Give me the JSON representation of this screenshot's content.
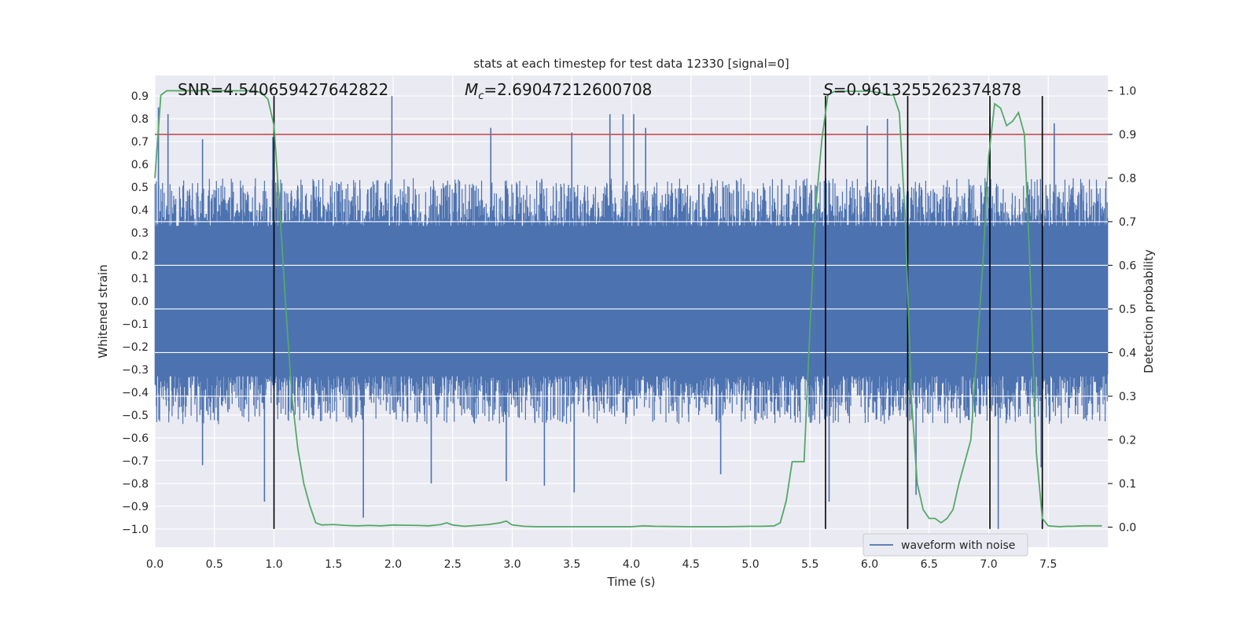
{
  "chart_data": {
    "type": "line",
    "title": "stats at each timestep for test data 12330 [signal=0]",
    "xlabel": "Time (s)",
    "ylabel": "Whitened strain",
    "y2label": "Detection probability",
    "xlim": [
      0.0,
      8.0
    ],
    "ylim": [
      -1.08,
      0.99
    ],
    "y2lim": [
      -0.046,
      1.035
    ],
    "xticks": [
      "0.0",
      "0.5",
      "1.0",
      "1.5",
      "2.0",
      "2.5",
      "3.0",
      "3.5",
      "4.0",
      "4.5",
      "5.0",
      "5.5",
      "6.0",
      "6.5",
      "7.0",
      "7.5"
    ],
    "yticks": [
      "0.9",
      "0.8",
      "0.7",
      "0.6",
      "0.5",
      "0.4",
      "0.3",
      "0.2",
      "0.1",
      "0.0",
      "-0.1",
      "-0.2",
      "-0.3",
      "-0.4",
      "-0.5",
      "-0.6",
      "-0.7",
      "-0.8",
      "-0.9",
      "-1.0"
    ],
    "y2ticks": [
      "1.0",
      "0.9",
      "0.8",
      "0.7",
      "0.6",
      "0.5",
      "0.4",
      "0.3",
      "0.2",
      "0.1",
      "0.0"
    ],
    "annotations": {
      "snr": "SNR=4.540659427642822",
      "mc_symbol": "M",
      "mc_sub": "c",
      "mc_value": "=2.69047212600708",
      "s_symbol": "S",
      "s_value": "=0.9613255262374878"
    },
    "legend": {
      "label": "waveform with noise",
      "position": "lower-right"
    },
    "threshold_line": {
      "y2": 0.9,
      "color": "#c44e52"
    },
    "vertical_markers": {
      "times": [
        1.0,
        5.63,
        6.32,
        7.01,
        7.45
      ],
      "y_range": [
        -1.0,
        0.9
      ],
      "color": "#000000"
    },
    "series": [
      {
        "name": "waveform with noise",
        "color": "#4c72b0",
        "kind": "noise",
        "spikes": [
          {
            "x": 0.03,
            "y": 0.85
          },
          {
            "x": 0.11,
            "y": 0.82
          },
          {
            "x": 0.4,
            "y": 0.71
          },
          {
            "x": 0.99,
            "y": 0.72
          },
          {
            "x": 1.99,
            "y": 0.9
          },
          {
            "x": 2.82,
            "y": 0.76
          },
          {
            "x": 3.5,
            "y": 0.74
          },
          {
            "x": 3.82,
            "y": 0.82
          },
          {
            "x": 3.93,
            "y": 0.82
          },
          {
            "x": 4.02,
            "y": 0.82
          },
          {
            "x": 4.12,
            "y": 0.76
          },
          {
            "x": 5.98,
            "y": 0.77
          },
          {
            "x": 6.15,
            "y": 0.8
          },
          {
            "x": 7.01,
            "y": 0.81
          },
          {
            "x": 7.55,
            "y": 0.78
          },
          {
            "x": 0.92,
            "y": -0.88
          },
          {
            "x": 1.75,
            "y": -0.95
          },
          {
            "x": 2.32,
            "y": -0.8
          },
          {
            "x": 2.95,
            "y": -0.79
          },
          {
            "x": 3.27,
            "y": -0.81
          },
          {
            "x": 3.52,
            "y": -0.84
          },
          {
            "x": 5.66,
            "y": -0.88
          },
          {
            "x": 6.39,
            "y": -0.85
          },
          {
            "x": 7.08,
            "y": -1.0
          },
          {
            "x": 7.44,
            "y": -0.73
          },
          {
            "x": 0.4,
            "y": -0.72
          },
          {
            "x": 4.75,
            "y": -0.76
          }
        ]
      },
      {
        "name": "detection probability",
        "color": "#55a868",
        "axis": "right",
        "x": [
          0.0,
          0.05,
          0.1,
          0.15,
          0.2,
          0.3,
          0.4,
          0.5,
          0.6,
          0.7,
          0.8,
          0.85,
          0.9,
          0.95,
          1.0,
          1.05,
          1.1,
          1.15,
          1.2,
          1.25,
          1.3,
          1.35,
          1.4,
          1.5,
          1.6,
          1.7,
          1.8,
          1.9,
          2.0,
          2.2,
          2.3,
          2.4,
          2.45,
          2.5,
          2.6,
          2.7,
          2.8,
          2.9,
          2.95,
          3.0,
          3.1,
          3.2,
          3.5,
          4.0,
          4.1,
          4.2,
          4.5,
          4.8,
          5.0,
          5.1,
          5.2,
          5.25,
          5.3,
          5.35,
          5.4,
          5.45,
          5.5,
          5.55,
          5.6,
          5.65,
          5.7,
          5.75,
          5.8,
          5.9,
          6.0,
          6.1,
          6.15,
          6.2,
          6.25,
          6.3,
          6.35,
          6.4,
          6.45,
          6.5,
          6.55,
          6.6,
          6.65,
          6.7,
          6.75,
          6.8,
          6.85,
          6.9,
          6.95,
          7.0,
          7.05,
          7.1,
          7.15,
          7.2,
          7.25,
          7.3,
          7.35,
          7.4,
          7.45,
          7.5,
          7.55,
          7.6,
          7.65,
          7.7,
          7.8,
          7.95
        ],
        "values": [
          0.8,
          0.99,
          1.0,
          1.0,
          1.0,
          1.0,
          1.0,
          1.0,
          1.0,
          1.0,
          1.0,
          0.999,
          0.995,
          0.98,
          0.92,
          0.72,
          0.5,
          0.3,
          0.18,
          0.1,
          0.05,
          0.01,
          0.005,
          0.006,
          0.004,
          0.003,
          0.004,
          0.003,
          0.005,
          0.004,
          0.003,
          0.006,
          0.01,
          0.005,
          0.002,
          0.004,
          0.006,
          0.01,
          0.014,
          0.005,
          0.002,
          0.001,
          0.001,
          0.001,
          0.003,
          0.002,
          0.001,
          0.001,
          0.002,
          0.002,
          0.003,
          0.01,
          0.06,
          0.15,
          0.15,
          0.15,
          0.46,
          0.74,
          0.89,
          0.99,
          0.998,
          0.999,
          0.999,
          0.999,
          0.999,
          0.995,
          0.99,
          0.99,
          0.95,
          0.7,
          0.3,
          0.1,
          0.04,
          0.02,
          0.02,
          0.01,
          0.02,
          0.04,
          0.1,
          0.15,
          0.2,
          0.4,
          0.6,
          0.85,
          0.97,
          0.96,
          0.92,
          0.93,
          0.95,
          0.9,
          0.57,
          0.17,
          0.02,
          0.003,
          0.002,
          0.001,
          0.002,
          0.002,
          0.003,
          0.003
        ]
      }
    ]
  }
}
